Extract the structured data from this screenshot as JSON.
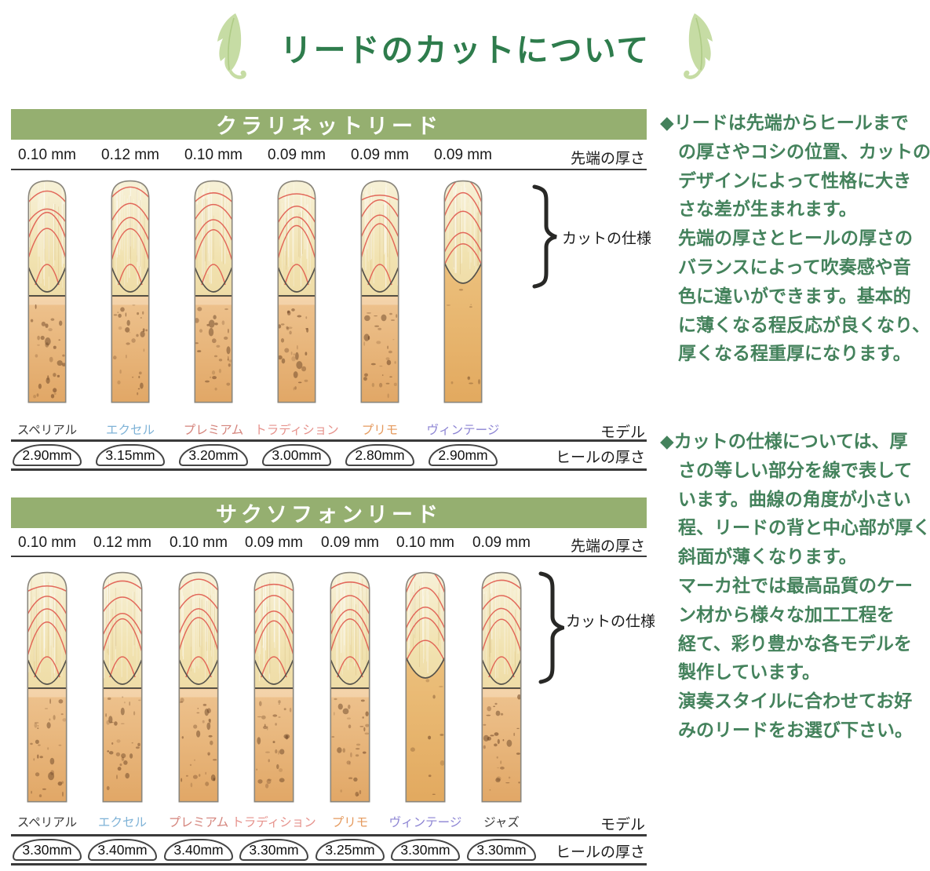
{
  "page": {
    "title": "リードのカットについて"
  },
  "colors": {
    "header_bar": "#95af70",
    "title_green": "#2e7c4c",
    "note_green": "#44825c",
    "cut_line_red": "#e05a4e"
  },
  "icons": {
    "left": "leaf-icon",
    "right": "leaf-icon"
  },
  "sections": [
    {
      "id": "clarinet",
      "header": "クラリネットリード",
      "tip_label": "先端の厚さ",
      "cut_label": "カットの仕様",
      "model_label": "モデル",
      "heel_label": "ヒールの厚さ",
      "reeds": [
        {
          "tip": "0.10 mm",
          "model": "スペリアル",
          "model_color": "#3a3a3a",
          "heel": "2.90mm",
          "cut": "standard"
        },
        {
          "tip": "0.12 mm",
          "model": "エクセル",
          "model_color": "#7fb3d7",
          "heel": "3.15mm",
          "cut": "standard"
        },
        {
          "tip": "0.10 mm",
          "model": "プレミアム",
          "model_color": "#d4837b",
          "heel": "3.20mm",
          "cut": "standard"
        },
        {
          "tip": "0.09 mm",
          "model": "トラディション",
          "model_color": "#e6928c",
          "heel": "3.00mm",
          "cut": "standard"
        },
        {
          "tip": "0.09 mm",
          "model": "プリモ",
          "model_color": "#e59a5e",
          "heel": "2.80mm",
          "cut": "standard"
        },
        {
          "tip": "0.09 mm",
          "model": "ヴィンテージ",
          "model_color": "#8b83d3",
          "heel": "2.90mm",
          "cut": "vintage"
        }
      ]
    },
    {
      "id": "saxophone",
      "header": "サクソフォンリード",
      "tip_label": "先端の厚さ",
      "cut_label": "カットの仕様",
      "model_label": "モデル",
      "heel_label": "ヒールの厚さ",
      "reeds": [
        {
          "tip": "0.10 mm",
          "model": "スペリアル",
          "model_color": "#3a3a3a",
          "heel": "3.30mm",
          "cut": "standard"
        },
        {
          "tip": "0.12 mm",
          "model": "エクセル",
          "model_color": "#7fb3d7",
          "heel": "3.40mm",
          "cut": "standard"
        },
        {
          "tip": "0.10 mm",
          "model": "プレミアム",
          "model_color": "#d4837b",
          "heel": "3.40mm",
          "cut": "standard"
        },
        {
          "tip": "0.09 mm",
          "model": "トラディション",
          "model_color": "#e6928c",
          "heel": "3.30mm",
          "cut": "standard"
        },
        {
          "tip": "0.09 mm",
          "model": "プリモ",
          "model_color": "#e59a5e",
          "heel": "3.25mm",
          "cut": "standard"
        },
        {
          "tip": "0.10 mm",
          "model": "ヴィンテージ",
          "model_color": "#8b83d3",
          "heel": "3.30mm",
          "cut": "vintage"
        },
        {
          "tip": "0.09 mm",
          "model": "ジャズ",
          "model_color": "#3a3a3a",
          "heel": "3.30mm",
          "cut": "standard"
        }
      ]
    }
  ],
  "notes": [
    {
      "marker": "◆",
      "lines": [
        "リードは先端からヒールまで",
        "の厚さやコシの位置、カットの",
        "デザインによって性格に大き",
        "さな差が生まれます。",
        "先端の厚さとヒールの厚さの",
        "バランスによって吹奏感や音",
        "色に違いができます。基本的",
        "に薄くなる程反応が良くなり、",
        "厚くなる程重厚になります。"
      ]
    },
    {
      "marker": "◆",
      "lines": [
        "カットの仕様については、厚",
        "さの等しい部分を線で表して",
        "います。曲線の角度が小さい",
        "程、リードの背と中心部が厚く",
        "斜面が薄くなります。",
        "マーカ社では最高品質のケー",
        "ン材から様々な加工工程を",
        "経て、彩り豊かな各モデルを",
        "製作しています。",
        "演奏スタイルに合わせてお好",
        "みのリードをお選び下さい。"
      ]
    }
  ]
}
